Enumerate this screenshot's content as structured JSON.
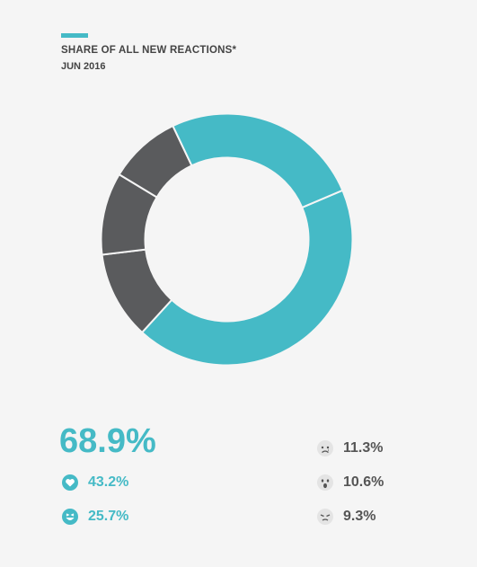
{
  "header": {
    "title": "SHARE OF ALL NEW REACTIONS*",
    "subtitle": "JUN 2016"
  },
  "colors": {
    "positive": "#45bac6",
    "negative": "#5a5b5d"
  },
  "chart_data": {
    "type": "pie",
    "title": "SHARE OF ALL NEW REACTIONS*",
    "subtitle": "JUN 2016",
    "slices": [
      {
        "label": "43.2%",
        "icon": "heart-icon",
        "value": 43.2,
        "color": "#45bac6"
      },
      {
        "label": "11.3%",
        "icon": "sad-face-icon",
        "value": 11.3,
        "color": "#5a5b5d"
      },
      {
        "label": "10.6%",
        "icon": "wow-face-icon",
        "value": 10.6,
        "color": "#5a5b5d"
      },
      {
        "label": "9.3%",
        "icon": "angry-face-icon",
        "value": 9.3,
        "color": "#5a5b5d"
      },
      {
        "label": "25.7%",
        "icon": "laughing-face-icon",
        "value": 25.7,
        "color": "#45bac6"
      }
    ],
    "total_positive": "68.9%"
  },
  "stats": {
    "total": "68.9%",
    "love": "43.2%",
    "haha": "25.7%",
    "sad": "11.3%",
    "wow": "10.6%",
    "angry": "9.3%"
  }
}
